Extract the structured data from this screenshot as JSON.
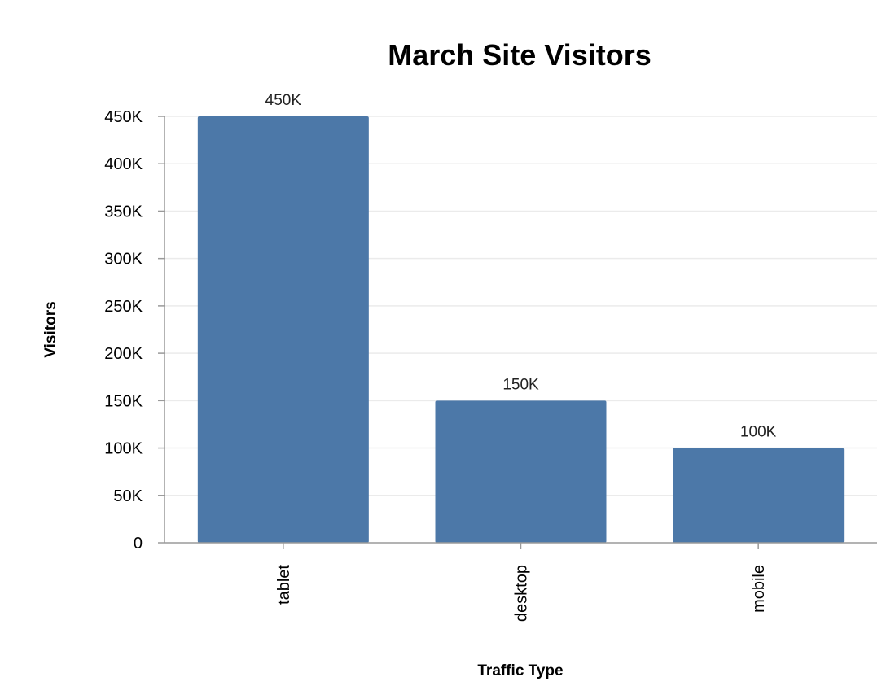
{
  "chart_data": {
    "type": "bar",
    "title": "March Site Visitors",
    "xlabel": "Traffic Type",
    "ylabel": "Visitors",
    "categories": [
      "tablet",
      "desktop",
      "mobile"
    ],
    "values": [
      450000,
      150000,
      100000
    ],
    "data_labels": [
      "450K",
      "150K",
      "100K"
    ],
    "ylim": [
      0,
      450000
    ],
    "y_ticks": [
      0,
      50000,
      100000,
      150000,
      200000,
      250000,
      300000,
      350000,
      400000,
      450000
    ],
    "y_tick_labels": [
      "0",
      "50K",
      "100K",
      "150K",
      "200K",
      "250K",
      "300K",
      "350K",
      "400K",
      "450K"
    ],
    "grid": true,
    "legend": "none",
    "bar_color": "#4c78a8"
  }
}
